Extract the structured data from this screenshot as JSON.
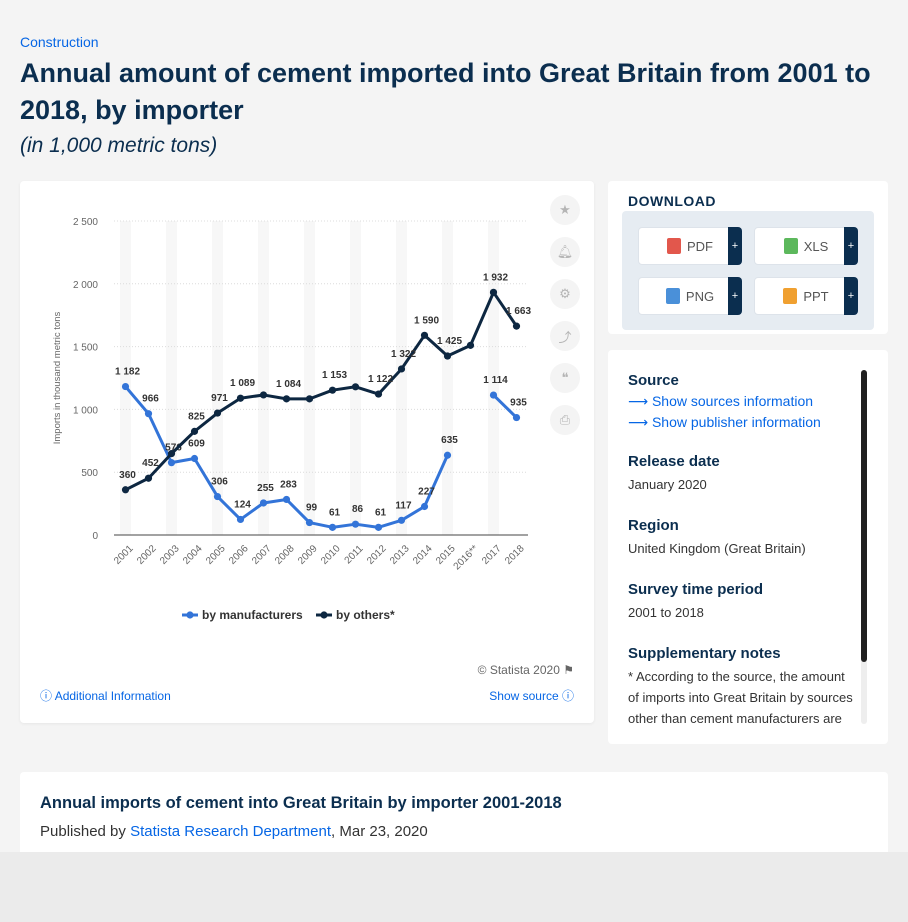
{
  "header": {
    "category": "Construction",
    "title": "Annual amount of cement imported into Great Britain from 2001 to 2018, by importer",
    "subtitle": "(in 1,000 metric tons)"
  },
  "chart_data": {
    "type": "line",
    "categories": [
      "2001",
      "2002",
      "2003",
      "2004",
      "2005",
      "2006",
      "2007",
      "2008",
      "2009",
      "2010",
      "2011",
      "2012",
      "2013",
      "2014",
      "2015",
      "2016**",
      "2017",
      "2018"
    ],
    "ylabel": "Imports in thousand metric tons",
    "ylim": [
      0,
      2500
    ],
    "yticks": [
      0,
      500,
      1000,
      1500,
      2000,
      2500
    ],
    "ytick_labels": [
      "0",
      "500",
      "1 000",
      "1 500",
      "2 000",
      "2 500"
    ],
    "grid": true,
    "legend_position": "bottom",
    "series": [
      {
        "name": "by manufacturers",
        "color": "#3374d8",
        "values": [
          1182,
          966,
          576,
          609,
          306,
          124,
          255,
          283,
          99,
          61,
          86,
          61,
          117,
          227,
          635,
          null,
          1114,
          935
        ],
        "labels": [
          "1 182",
          "966",
          "576",
          "609",
          "306",
          "124",
          "255",
          "283",
          "99",
          "61",
          "86",
          "61",
          "117",
          "227",
          "635",
          "",
          "1 114",
          "935"
        ]
      },
      {
        "name": "by others*",
        "color": "#0d2741",
        "values": [
          360,
          452,
          648,
          825,
          971,
          1089,
          1115,
          1084,
          1084,
          1153,
          1180,
          1122,
          1322,
          1590,
          1425,
          1510,
          1932,
          1663
        ],
        "labels": [
          "360",
          "452",
          "",
          "825",
          "971",
          "1 089",
          "",
          "1 084",
          "",
          "1 153",
          "",
          "1 122",
          "1 322",
          "1 590",
          "1 425",
          "",
          "1 932",
          "1 663"
        ]
      }
    ]
  },
  "chart_footer": {
    "copyright": "© Statista 2020",
    "additional_info": "Additional Information",
    "show_source": "Show source"
  },
  "tools": {
    "icons": [
      "star-icon",
      "bell-icon",
      "gear-icon",
      "share-icon",
      "quote-icon",
      "print-icon"
    ]
  },
  "download": {
    "title": "DOWNLOAD",
    "buttons": [
      {
        "label": "PDF",
        "plus": "+",
        "icon_color": "#e2574c"
      },
      {
        "label": "XLS",
        "plus": "+",
        "icon_color": "#5cb85c"
      },
      {
        "label": "PNG",
        "plus": "+",
        "icon_color": "#4a90d9"
      },
      {
        "label": "PPT",
        "plus": "+",
        "icon_color": "#f0a030"
      }
    ]
  },
  "info": {
    "source_label": "Source",
    "sources_link": "Show sources information",
    "publisher_link": "Show publisher information",
    "release_label": "Release date",
    "release_value": "January 2020",
    "region_label": "Region",
    "region_value": "United Kingdom (Great Britain)",
    "period_label": "Survey time period",
    "period_value": "2001 to 2018",
    "notes_label": "Supplementary notes",
    "notes_value": "* According to the source, the amount of imports into Great Britain by sources other than cement manufacturers are"
  },
  "publication": {
    "title": "Annual imports of cement into Great Britain by importer 2001-2018",
    "published_by_prefix": "Published by",
    "department": "Statista Research Department",
    "date_suffix": ", Mar 23, 2020"
  }
}
